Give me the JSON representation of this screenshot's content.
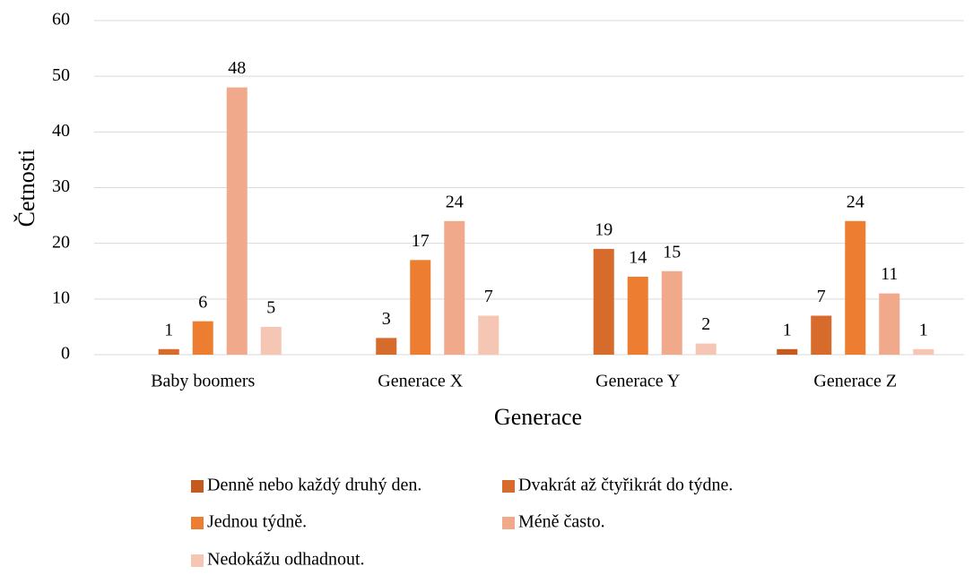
{
  "chart_data": {
    "type": "bar",
    "categories": [
      "Baby boomers",
      "Generace X",
      "Generace Y",
      "Generace Z"
    ],
    "series": [
      {
        "name": "Denně nebo každý druhý den.",
        "color": "#c45b1e",
        "values": [
          null,
          null,
          null,
          1
        ]
      },
      {
        "name": "Dvakrát až čtyřikrát do týdne.",
        "color": "#d66b2c",
        "values": [
          1,
          3,
          19,
          7
        ]
      },
      {
        "name": "Jednou týdně.",
        "color": "#ed7d31",
        "values": [
          6,
          17,
          14,
          24
        ]
      },
      {
        "name": "Méně často.",
        "color": "#f0a98a",
        "values": [
          48,
          24,
          15,
          11
        ]
      },
      {
        "name": "Nedokážu odhadnout.",
        "color": "#f5c6b4",
        "values": [
          5,
          7,
          2,
          1
        ]
      }
    ],
    "xlabel": "Generace",
    "ylabel": "Četnosti",
    "ylim": [
      0,
      60
    ],
    "yticks": [
      0,
      10,
      20,
      30,
      40,
      50,
      60
    ],
    "grid": true
  }
}
